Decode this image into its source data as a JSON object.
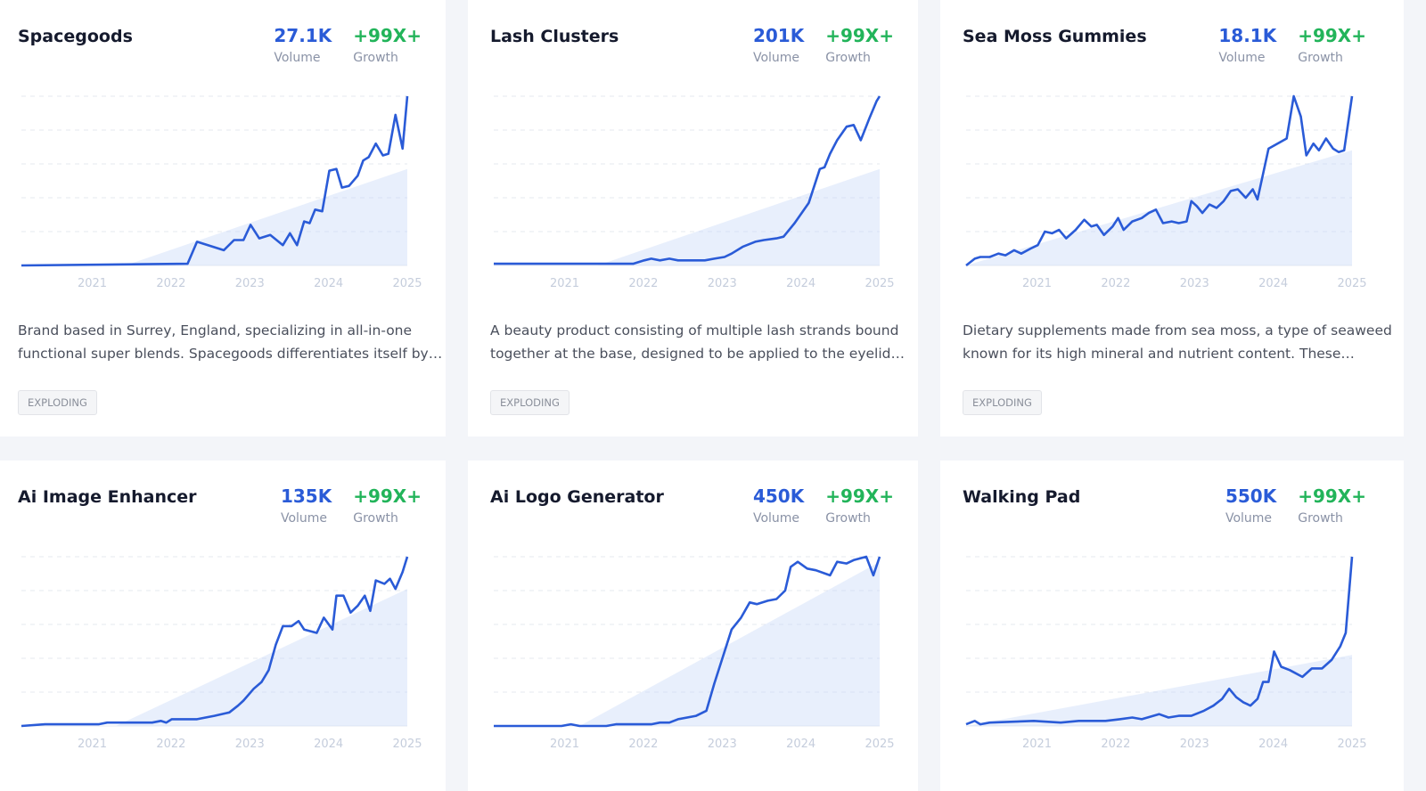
{
  "cards": [
    {
      "title": "Spacegoods",
      "volume": "27.1K",
      "volume_label": "Volume",
      "growth": "+99X+",
      "growth_label": "Growth",
      "chart": {
        "type": "line",
        "xlim": [
          2020.1,
          2025
        ],
        "ylim": [
          0,
          100
        ],
        "xticks": [
          2021,
          2022,
          2023,
          2024,
          2025
        ],
        "yticks": [
          0,
          20,
          40,
          60,
          80,
          100
        ],
        "grid": true,
        "color": "#2a5bd7",
        "x": [
          2020.1,
          2022.21,
          2022.33,
          2022.67,
          2022.8,
          2022.92,
          2023.01,
          2023.12,
          2023.26,
          2023.42,
          2023.51,
          2023.6,
          2023.69,
          2023.76,
          2023.83,
          2023.92,
          2024.01,
          2024.1,
          2024.17,
          2024.26,
          2024.37,
          2024.44,
          2024.51,
          2024.6,
          2024.69,
          2024.76,
          2024.85,
          2024.94,
          2025.0
        ],
        "values": [
          0,
          1,
          14,
          9,
          15,
          15,
          24,
          16,
          18,
          12,
          19,
          12,
          26,
          25,
          33,
          32,
          56,
          57,
          46,
          47,
          53,
          62,
          64,
          72,
          65,
          66,
          89,
          69,
          100
        ],
        "trend": {
          "x": [
            2021.42,
            2025.0
          ],
          "values": [
            0,
            57
          ]
        }
      },
      "description": [
        "Brand based in Surrey, England, specializing in all-in-one",
        "functional super blends. Spacegoods differentiates itself by…"
      ],
      "tag": "EXPLODING"
    },
    {
      "title": "Lash Clusters",
      "volume": "201K",
      "volume_label": "Volume",
      "growth": "+99X+",
      "growth_label": "Growth",
      "chart": {
        "type": "line",
        "xlim": [
          2020.1,
          2025
        ],
        "ylim": [
          0,
          100
        ],
        "xticks": [
          2021,
          2022,
          2023,
          2024,
          2025
        ],
        "yticks": [
          0,
          20,
          40,
          60,
          80,
          100
        ],
        "grid": true,
        "color": "#2a5bd7",
        "x": [
          2020.1,
          2020.4,
          2021.87,
          2022.01,
          2022.1,
          2022.21,
          2022.33,
          2022.44,
          2022.67,
          2022.78,
          2022.9,
          2023.03,
          2023.12,
          2023.26,
          2023.42,
          2023.53,
          2023.69,
          2023.78,
          2023.92,
          2024.01,
          2024.1,
          2024.24,
          2024.3,
          2024.37,
          2024.46,
          2024.58,
          2024.67,
          2024.76,
          2024.87,
          2024.96,
          2025.0
        ],
        "values": [
          1,
          1,
          1,
          3,
          4,
          3,
          4,
          3,
          3,
          3,
          4,
          5,
          7,
          11,
          14,
          15,
          16,
          17,
          25,
          31,
          37,
          57,
          58,
          66,
          74,
          82,
          83,
          74,
          87,
          97,
          100
        ],
        "trend": {
          "x": [
            2021.42,
            2025.0
          ],
          "values": [
            0,
            57
          ]
        }
      },
      "description": [
        "A beauty product consisting of multiple lash strands bound",
        "together at the base, designed to be applied to the eyelid…"
      ],
      "tag": "EXPLODING"
    },
    {
      "title": "Sea Moss Gummies",
      "volume": "18.1K",
      "volume_label": "Volume",
      "growth": "+99X+",
      "growth_label": "Growth",
      "chart": {
        "type": "line",
        "xlim": [
          2020.1,
          2025
        ],
        "ylim": [
          0,
          100
        ],
        "xticks": [
          2021,
          2022,
          2023,
          2024,
          2025
        ],
        "yticks": [
          0,
          20,
          40,
          60,
          80,
          100
        ],
        "grid": true,
        "color": "#2a5bd7",
        "x": [
          2020.1,
          2020.21,
          2020.28,
          2020.4,
          2020.51,
          2020.6,
          2020.71,
          2020.8,
          2020.92,
          2021.01,
          2021.1,
          2021.19,
          2021.28,
          2021.37,
          2021.49,
          2021.6,
          2021.69,
          2021.76,
          2021.85,
          2021.96,
          2022.03,
          2022.1,
          2022.21,
          2022.33,
          2022.42,
          2022.51,
          2022.6,
          2022.71,
          2022.8,
          2022.9,
          2022.96,
          2023.03,
          2023.1,
          2023.19,
          2023.28,
          2023.37,
          2023.46,
          2023.55,
          2023.65,
          2023.74,
          2023.8,
          2023.94,
          2024.17,
          2024.26,
          2024.35,
          2024.42,
          2024.51,
          2024.58,
          2024.67,
          2024.76,
          2024.83,
          2024.9,
          2025.0
        ],
        "values": [
          0,
          4,
          5,
          5,
          7,
          6,
          9,
          7,
          10,
          12,
          20,
          19,
          21,
          16,
          21,
          27,
          23,
          24,
          18,
          23,
          28,
          21,
          26,
          28,
          31,
          33,
          25,
          26,
          25,
          26,
          38,
          35,
          31,
          36,
          34,
          38,
          44,
          45,
          40,
          45,
          39,
          69,
          75,
          100,
          88,
          65,
          72,
          68,
          75,
          69,
          67,
          68,
          100
        ],
        "trend": {
          "x": [
            2020.1,
            2025.0
          ],
          "values": [
            0,
            68
          ]
        }
      },
      "description": [
        "Dietary supplements made from sea moss, a type of seaweed",
        "known for its high mineral and nutrient content. These…"
      ],
      "tag": "EXPLODING"
    },
    {
      "title": "Ai Image Enhancer",
      "volume": "135K",
      "volume_label": "Volume",
      "growth": "+99X+",
      "growth_label": "Growth",
      "chart": {
        "type": "line",
        "xlim": [
          2020.1,
          2025
        ],
        "ylim": [
          0,
          100
        ],
        "xticks": [
          2021,
          2022,
          2023,
          2024,
          2025
        ],
        "yticks": [
          0,
          20,
          40,
          60,
          80,
          100
        ],
        "grid": true,
        "color": "#2a5bd7",
        "x": [
          2020.1,
          2020.4,
          2021.08,
          2021.19,
          2021.76,
          2021.87,
          2021.94,
          2022.01,
          2022.33,
          2022.55,
          2022.74,
          2022.85,
          2022.92,
          2023.05,
          2023.15,
          2023.24,
          2023.33,
          2023.42,
          2023.53,
          2023.62,
          2023.69,
          2023.85,
          2023.94,
          2024.05,
          2024.1,
          2024.19,
          2024.28,
          2024.37,
          2024.46,
          2024.53,
          2024.6,
          2024.71,
          2024.78,
          2024.85,
          2024.94,
          2025.0
        ],
        "values": [
          0,
          1,
          1,
          2,
          2,
          3,
          2,
          4,
          4,
          6,
          8,
          12,
          15,
          22,
          26,
          33,
          48,
          59,
          59,
          62,
          57,
          55,
          64,
          57,
          77,
          77,
          67,
          71,
          77,
          68,
          86,
          84,
          87,
          81,
          91,
          100
        ],
        "trend": {
          "x": [
            2021.3,
            2025.0
          ],
          "values": [
            0,
            81
          ]
        }
      }
    },
    {
      "title": "Ai Logo Generator",
      "volume": "450K",
      "volume_label": "Volume",
      "growth": "+99X+",
      "growth_label": "Growth",
      "chart": {
        "type": "line",
        "xlim": [
          2020.1,
          2025
        ],
        "ylim": [
          0,
          100
        ],
        "xticks": [
          2021,
          2022,
          2023,
          2024,
          2025
        ],
        "yticks": [
          0,
          20,
          40,
          60,
          80,
          100
        ],
        "grid": true,
        "color": "#2a5bd7",
        "x": [
          2020.1,
          2020.96,
          2021.08,
          2021.19,
          2021.53,
          2021.65,
          2022.1,
          2022.21,
          2022.33,
          2022.44,
          2022.67,
          2022.8,
          2022.9,
          2023.01,
          2023.12,
          2023.24,
          2023.35,
          2023.44,
          2023.58,
          2023.69,
          2023.8,
          2023.87,
          2023.96,
          2024.08,
          2024.19,
          2024.37,
          2024.46,
          2024.58,
          2024.67,
          2024.83,
          2024.92,
          2025.0
        ],
        "values": [
          0,
          0,
          1,
          0,
          0,
          1,
          1,
          2,
          2,
          4,
          6,
          9,
          25,
          41,
          57,
          64,
          73,
          72,
          74,
          75,
          80,
          94,
          97,
          93,
          92,
          89,
          97,
          96,
          98,
          100,
          89,
          100
        ],
        "trend": {
          "x": [
            2021.19,
            2025.0
          ],
          "values": [
            0,
            97
          ]
        }
      }
    },
    {
      "title": "Walking Pad",
      "volume": "550K",
      "volume_label": "Volume",
      "growth": "+99X+",
      "growth_label": "Growth",
      "chart": {
        "type": "line",
        "xlim": [
          2020.1,
          2025
        ],
        "ylim": [
          0,
          100
        ],
        "xticks": [
          2021,
          2022,
          2023,
          2024,
          2025
        ],
        "yticks": [
          0,
          20,
          40,
          60,
          80,
          100
        ],
        "grid": true,
        "color": "#2a5bd7",
        "x": [
          2020.1,
          2020.21,
          2020.28,
          2020.4,
          2020.96,
          2021.3,
          2021.53,
          2021.87,
          2022.05,
          2022.21,
          2022.33,
          2022.55,
          2022.67,
          2022.8,
          2022.96,
          2023.12,
          2023.24,
          2023.35,
          2023.44,
          2023.53,
          2023.62,
          2023.71,
          2023.8,
          2023.87,
          2023.94,
          2024.01,
          2024.1,
          2024.21,
          2024.37,
          2024.49,
          2024.62,
          2024.74,
          2024.85,
          2024.92,
          2025.0
        ],
        "values": [
          1,
          3,
          1,
          2,
          3,
          2,
          3,
          3,
          4,
          5,
          4,
          7,
          5,
          6,
          6,
          9,
          12,
          16,
          22,
          17,
          14,
          12,
          16,
          26,
          26,
          44,
          35,
          33,
          29,
          34,
          34,
          39,
          47,
          55,
          100
        ],
        "trend": {
          "x": [
            2020.1,
            2025.0
          ],
          "values": [
            0,
            42
          ]
        }
      }
    }
  ]
}
